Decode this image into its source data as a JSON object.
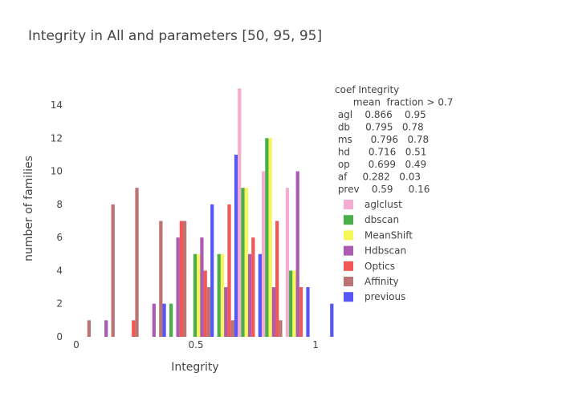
{
  "chart_data": {
    "type": "bar",
    "title": "Integrity in All  and parameters [50, 95, 95]",
    "xlabel": "Integrity",
    "ylabel": "number of families",
    "xlim": [
      -0.05,
      1.04
    ],
    "ylim": [
      0,
      15.5
    ],
    "x_ticks": [
      {
        "value": 0,
        "label": "0"
      },
      {
        "value": 0.5,
        "label": "0.5"
      },
      {
        "value": 1,
        "label": "1"
      }
    ],
    "y_ticks": [
      0,
      2,
      4,
      6,
      8,
      10,
      12,
      14
    ],
    "bins": [
      0.025,
      0.125,
      0.225,
      0.325,
      0.425,
      0.525,
      0.625,
      0.725,
      0.825,
      0.925,
      1.025
    ],
    "bin_width": 0.1,
    "series": [
      {
        "name": "aglclust",
        "color": "#f0a0c8",
        "values": [
          0,
          0,
          0,
          0,
          0,
          0,
          0,
          15,
          10,
          9,
          0
        ]
      },
      {
        "name": "dbscan",
        "color": "#2ca02c",
        "values": [
          0,
          0,
          0,
          0,
          2,
          5,
          5,
          9,
          12,
          4,
          0
        ]
      },
      {
        "name": "MeanShift",
        "color": "#f5f53a",
        "values": [
          0,
          0,
          0,
          0,
          0,
          5,
          5,
          9,
          12,
          4,
          0
        ]
      },
      {
        "name": "Hdbscan",
        "color": "#9a3fa3",
        "values": [
          0,
          1,
          0,
          2,
          6,
          6,
          3,
          5,
          3,
          10,
          0
        ]
      },
      {
        "name": "Optics",
        "color": "#f03a3a",
        "values": [
          0,
          0,
          1,
          0,
          7,
          4,
          8,
          6,
          7,
          3,
          0
        ]
      },
      {
        "name": "Affinity",
        "color": "#b05a5a",
        "values": [
          1,
          8,
          9,
          7,
          7,
          3,
          1,
          0,
          1,
          0,
          0
        ]
      },
      {
        "name": "previous",
        "color": "#3a3af5",
        "values": [
          0,
          0,
          0,
          2,
          0,
          8,
          11,
          5,
          0,
          3,
          2
        ]
      }
    ],
    "legend_position": "right",
    "legend_title_lines": [
      "coef Integrity",
      "      mean  fraction > 0.7",
      " agl    0.866    0.95",
      " db     0.795   0.78",
      " ms      0.796   0.78",
      " hd      0.716   0.51",
      " op      0.699   0.49",
      " af     0.282   0.03",
      " prev    0.59     0.16"
    ]
  }
}
